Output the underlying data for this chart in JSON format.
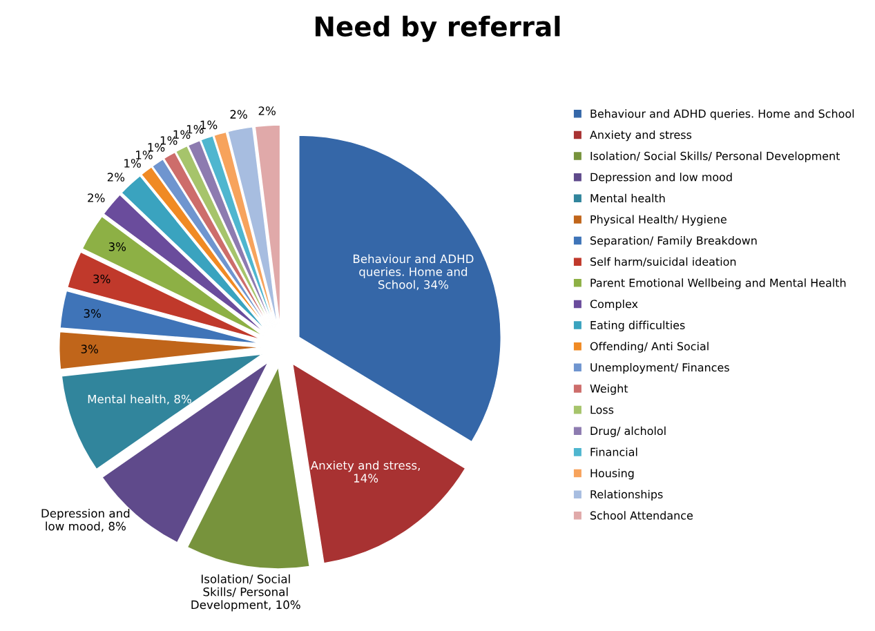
{
  "chart_data": {
    "type": "pie",
    "title": "Need by referral",
    "categories": [
      "Behaviour and ADHD queries. Home and School",
      "Anxiety and stress",
      "Isolation/ Social Skills/ Personal Development",
      "Depression and low mood",
      "Mental health",
      "Physical Health/ Hygiene",
      "Separation/ Family Breakdown",
      "Self harm/suicidal ideation",
      "Parent Emotional Wellbeing and Mental Health",
      "Complex",
      "Eating difficulties",
      "Offending/ Anti Social",
      "Unemployment/ Finances",
      "Weight",
      "Loss",
      "Drug/ alcholol",
      "Financial",
      "Housing",
      "Relationships",
      "School Attendance"
    ],
    "values": [
      34,
      14,
      10,
      8,
      8,
      3,
      3,
      3,
      3,
      2,
      2,
      1,
      1,
      1,
      1,
      1,
      1,
      1,
      2,
      2
    ],
    "colors": [
      "#3567a8",
      "#a83232",
      "#77933c",
      "#5f4a8b",
      "#31859c",
      "#c0651a",
      "#3f74b8",
      "#c0392b",
      "#8db045",
      "#6a4c9c",
      "#3aa3bf",
      "#f08a24",
      "#6f95cf",
      "#cd6d6b",
      "#a6c46b",
      "#8d7bb0",
      "#4fb6cf",
      "#f7a35c",
      "#a7bde0",
      "#e0a9a9"
    ],
    "value_labels": [
      "Behaviour and ADHD\nqueries. Home and\nSchool, 34%",
      "Anxiety and stress,\n14%",
      "Isolation/ Social\nSkills/ Personal\nDevelopment, 10%",
      "Depression and\nlow mood, 8%",
      "Mental health, 8%",
      "3%",
      "3%",
      "3%",
      "3%",
      "2%",
      "2%",
      "1%",
      "1%",
      "1%",
      "1%",
      "1%",
      "1%",
      "1%",
      "2%",
      "2%"
    ],
    "legend": "right"
  }
}
